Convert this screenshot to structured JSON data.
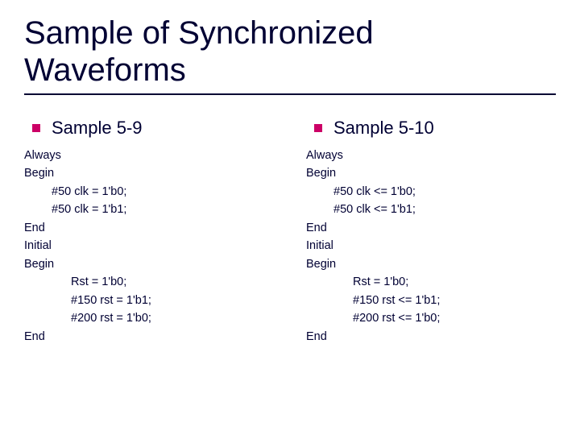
{
  "title_line1": "Sample of Synchronized",
  "title_line2": "Waveforms",
  "colors": {
    "text": "#000033",
    "bullet": "#cc0066",
    "underline": "#000033",
    "background": "#ffffff"
  },
  "left": {
    "heading": "Sample 5-9",
    "lines": [
      {
        "indent": 0,
        "text": "Always"
      },
      {
        "indent": 0,
        "text": "Begin"
      },
      {
        "indent": 1,
        "text": "#50 clk = 1'b0;"
      },
      {
        "indent": 1,
        "text": "#50 clk = 1'b1;"
      },
      {
        "indent": 0,
        "text": "End"
      },
      {
        "indent": 0,
        "text": "Initial"
      },
      {
        "indent": 0,
        "text": "Begin"
      },
      {
        "indent": 2,
        "text": "Rst = 1'b0;"
      },
      {
        "indent": 2,
        "text": "#150 rst = 1'b1;"
      },
      {
        "indent": 2,
        "text": "#200 rst = 1'b0;"
      },
      {
        "indent": 0,
        "text": "End"
      }
    ]
  },
  "right": {
    "heading": "Sample 5-10",
    "lines": [
      {
        "indent": 0,
        "text": "Always"
      },
      {
        "indent": 0,
        "text": "Begin"
      },
      {
        "indent": 1,
        "text": "#50 clk <= 1'b0;"
      },
      {
        "indent": 1,
        "text": "#50 clk <= 1'b1;"
      },
      {
        "indent": 0,
        "text": "End"
      },
      {
        "indent": 0,
        "text": "Initial"
      },
      {
        "indent": 0,
        "text": "Begin"
      },
      {
        "indent": 2,
        "text": "Rst = 1'b0;"
      },
      {
        "indent": 2,
        "text": "#150 rst <= 1'b1;"
      },
      {
        "indent": 2,
        "text": "#200 rst <= 1'b0;"
      },
      {
        "indent": 0,
        "text": "End"
      }
    ]
  }
}
